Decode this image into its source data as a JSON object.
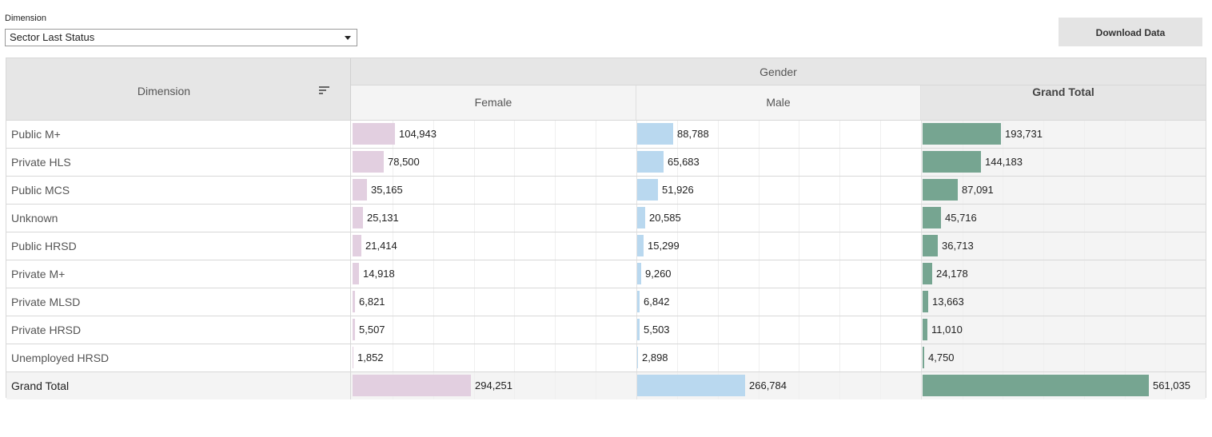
{
  "dimension_selector": {
    "label": "Dimension",
    "selected": "Sector Last Status"
  },
  "download_button": {
    "label": "Download Data"
  },
  "table": {
    "dimension_header": "Dimension",
    "group_header": "Gender",
    "columns": [
      "Female",
      "Male"
    ],
    "grand_total_header": "Grand Total",
    "colors": {
      "female": "#e2cfe0",
      "male": "#b9d8ef",
      "grand_total": "#76a591"
    },
    "rows": [
      {
        "label": "Public M+",
        "female": "104,943",
        "male": "88,788",
        "total": "193,731"
      },
      {
        "label": "Private HLS",
        "female": "78,500",
        "male": "65,683",
        "total": "144,183"
      },
      {
        "label": "Public MCS",
        "female": "35,165",
        "male": "51,926",
        "total": "87,091"
      },
      {
        "label": "Unknown",
        "female": "25,131",
        "male": "20,585",
        "total": "45,716"
      },
      {
        "label": "Public HRSD",
        "female": "21,414",
        "male": "15,299",
        "total": "36,713"
      },
      {
        "label": "Private M+",
        "female": "14,918",
        "male": "9,260",
        "total": "24,178"
      },
      {
        "label": "Private MLSD",
        "female": "6,821",
        "male": "6,842",
        "total": "13,663"
      },
      {
        "label": "Private HRSD",
        "female": "5,507",
        "male": "5,503",
        "total": "11,010"
      },
      {
        "label": "Unemployed HRSD",
        "female": "1,852",
        "male": "2,898",
        "total": "4,750"
      }
    ],
    "grand_total_row": {
      "label": "Grand Total",
      "female": "294,251",
      "male": "266,784",
      "total": "561,035"
    }
  }
}
